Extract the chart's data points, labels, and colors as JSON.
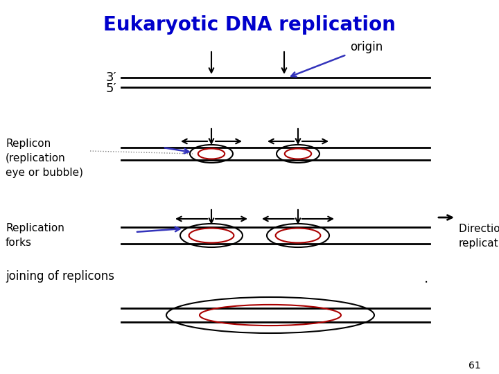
{
  "title": "Eukaryotic DNA replication",
  "title_color": "#0000CC",
  "title_fontsize": 20,
  "bg_color": "#ffffff",
  "text_color": "#000000",
  "blue_color": "#3333BB",
  "red_color": "#AA0000",
  "label_3prime": "3′",
  "label_5prime": "5′",
  "label_origin": "origin",
  "label_replicon": "Replicon\n(replication\neye or bubble)",
  "label_repforks": "Replication\nforks",
  "label_joining": "joining of replicons",
  "label_direction": "Direction of\nreplication",
  "label_page": "61"
}
